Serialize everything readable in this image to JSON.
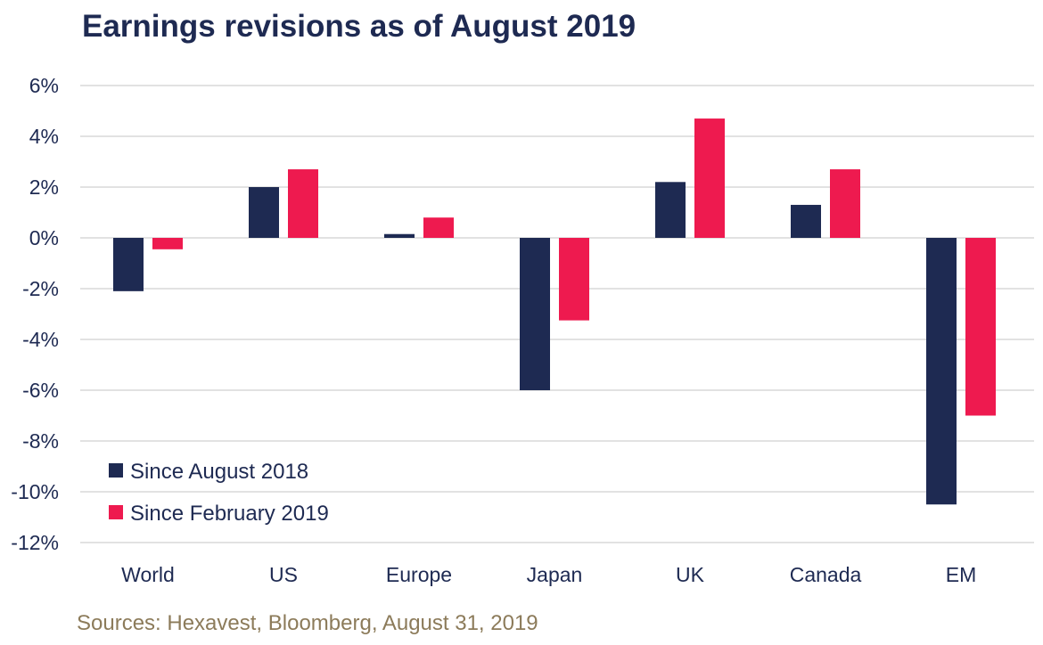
{
  "chart_data": {
    "type": "bar",
    "title": "Earnings revisions as of August 2019",
    "source": "Sources: Hexavest, Bloomberg, August 31, 2019",
    "categories": [
      "World",
      "US",
      "Europe",
      "Japan",
      "UK",
      "Canada",
      "EM"
    ],
    "series": [
      {
        "name": "Since August 2018",
        "color": "#1e2a52",
        "values": [
          -2.1,
          2.0,
          0.15,
          -6.0,
          2.2,
          1.3,
          -10.5
        ]
      },
      {
        "name": "Since February 2019",
        "color": "#ee1a4f",
        "values": [
          -0.45,
          2.7,
          0.8,
          -3.25,
          4.7,
          2.7,
          -7.0
        ]
      }
    ],
    "ylim": [
      -12,
      6
    ],
    "yticks": [
      6,
      4,
      2,
      0,
      -2,
      -4,
      -6,
      -8,
      -10,
      -12
    ],
    "ytick_labels": [
      "6%",
      "4%",
      "2%",
      "0%",
      "-2%",
      "-4%",
      "-6%",
      "-8%",
      "-10%",
      "-12%"
    ],
    "grid": true,
    "legend_position": "bottom-left",
    "xlabel": "",
    "ylabel": ""
  }
}
